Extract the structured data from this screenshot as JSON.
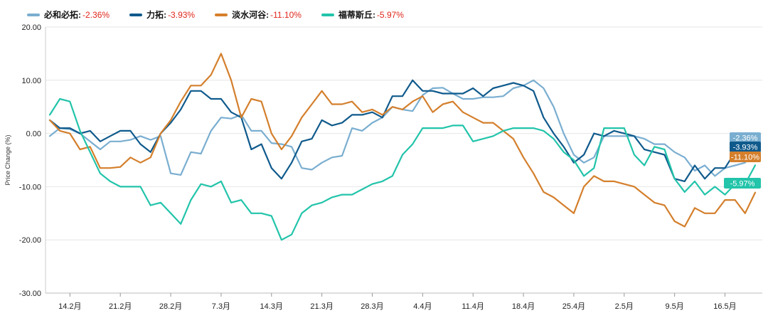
{
  "chart_data": {
    "type": "line",
    "ylabel": "Price Change (%)",
    "ylim": [
      -30,
      20
    ],
    "yticks": [
      {
        "value": 20,
        "label": "20.00"
      },
      {
        "value": 10,
        "label": "10.00"
      },
      {
        "value": 0,
        "label": "0.00"
      },
      {
        "value": -10,
        "label": "-10.00"
      },
      {
        "value": -20,
        "label": "-20.00"
      },
      {
        "value": -30,
        "label": "-30.00"
      }
    ],
    "xtick_labels": [
      "14.2月",
      "21.2月",
      "28.2月",
      "7.3月",
      "14.3月",
      "21.3月",
      "28.3月",
      "4.4月",
      "11.4月",
      "18.4月",
      "25.4月",
      "2.5月",
      "9.5月",
      "16.5月"
    ],
    "xtick_index": [
      2,
      7,
      12,
      17,
      22,
      27,
      32,
      37,
      42,
      47,
      52,
      57,
      62,
      67
    ],
    "grid": true,
    "legend_position": "top-left",
    "series": [
      {
        "name": "必和必拓",
        "change_label": "-2.36%",
        "color": "#7aaed0",
        "values": [
          -0.5,
          1.0,
          0.8,
          0.0,
          -1.5,
          -3.0,
          -1.5,
          -1.5,
          -1.2,
          -0.5,
          -1.2,
          -0.5,
          -7.5,
          -7.8,
          -3.5,
          -3.8,
          0.5,
          3.0,
          2.8,
          3.5,
          0.5,
          0.5,
          -1.8,
          -2.0,
          -2.5,
          -6.5,
          -6.8,
          -5.5,
          -4.5,
          -4.2,
          1.0,
          0.5,
          2.0,
          3.0,
          5.0,
          4.5,
          4.2,
          7.2,
          8.5,
          8.6,
          7.5,
          6.5,
          6.5,
          6.8,
          6.8,
          7.0,
          8.5,
          9.0,
          10.0,
          8.5,
          5.0,
          0.0,
          -4.0,
          -5.5,
          -4.5,
          -0.5,
          -0.5,
          -0.5,
          -0.5,
          -1.0,
          -2.0,
          -2.0,
          -3.5,
          -4.5,
          -7.0,
          -6.0,
          -8.0,
          -6.5,
          -6.0,
          -5.5,
          -2.36
        ]
      },
      {
        "name": "力拓",
        "change_label": "-3.93%",
        "color": "#0f5a8c",
        "values": [
          2.5,
          1.0,
          1.0,
          0.0,
          0.5,
          -1.5,
          -0.5,
          0.5,
          0.5,
          -2.0,
          -3.5,
          0.0,
          2.0,
          4.5,
          8.0,
          8.0,
          6.5,
          6.5,
          4.0,
          3.0,
          -3.0,
          -2.0,
          -6.5,
          -8.5,
          -5.5,
          -1.5,
          -1.0,
          2.5,
          1.5,
          2.0,
          3.5,
          3.5,
          4.0,
          3.0,
          7.0,
          7.0,
          10.0,
          8.0,
          8.0,
          7.5,
          7.5,
          7.5,
          8.5,
          7.0,
          8.5,
          9.0,
          9.5,
          9.0,
          8.0,
          3.0,
          0.0,
          -2.5,
          -5.5,
          -4.0,
          0.0,
          -0.5,
          0.5,
          0.0,
          -0.5,
          -3.0,
          -3.5,
          -4.0,
          -8.5,
          -9.0,
          -6.0,
          -8.5,
          -6.5,
          -6.5,
          -3.5,
          -4.0,
          -3.93
        ]
      },
      {
        "name": "淡水河谷",
        "change_label": "-11.10%",
        "color": "#d47f2c",
        "values": [
          2.5,
          0.5,
          0.0,
          -3.0,
          -2.5,
          -6.5,
          -6.5,
          -6.3,
          -4.5,
          -5.5,
          -4.5,
          0.0,
          2.5,
          6.0,
          9.0,
          9.0,
          11.0,
          15.0,
          10.0,
          3.0,
          6.5,
          6.0,
          0.0,
          -3.0,
          -0.5,
          3.0,
          5.5,
          8.0,
          5.5,
          5.5,
          6.0,
          4.0,
          4.5,
          3.5,
          5.0,
          4.5,
          6.0,
          7.0,
          4.0,
          5.5,
          6.0,
          4.0,
          3.0,
          2.0,
          2.0,
          0.5,
          -1.0,
          -4.5,
          -7.5,
          -11.0,
          -12.0,
          -13.5,
          -15.0,
          -10.0,
          -8.0,
          -9.0,
          -9.0,
          -9.5,
          -10.0,
          -11.5,
          -13.0,
          -13.5,
          -16.5,
          -17.5,
          -14.0,
          -15.0,
          -15.0,
          -12.5,
          -12.5,
          -15.0,
          -11.1
        ]
      },
      {
        "name": "福蒂斯丘",
        "change_label": "-5.97%",
        "color": "#22c4aa",
        "values": [
          3.5,
          6.5,
          6.0,
          0.5,
          -3.5,
          -7.5,
          -9.0,
          -10.0,
          -10.0,
          -10.0,
          -13.5,
          -13.0,
          -15.0,
          -17.0,
          -12.5,
          -9.5,
          -10.0,
          -9.0,
          -13.0,
          -12.5,
          -15.0,
          -15.0,
          -15.5,
          -20.0,
          -19.0,
          -15.0,
          -13.5,
          -13.0,
          -12.0,
          -11.5,
          -11.5,
          -10.5,
          -9.5,
          -9.0,
          -8.0,
          -4.0,
          -2.0,
          1.0,
          1.0,
          1.0,
          1.5,
          1.5,
          -1.5,
          -1.0,
          -0.5,
          0.5,
          1.0,
          1.0,
          1.0,
          0.5,
          -1.0,
          -3.5,
          -5.0,
          -8.0,
          -6.5,
          1.0,
          1.0,
          1.0,
          -4.0,
          -6.0,
          -2.5,
          -3.0,
          -8.5,
          -11.0,
          -9.0,
          -11.5,
          -10.0,
          -11.5,
          -9.5,
          -9.5,
          -5.97
        ]
      }
    ]
  }
}
